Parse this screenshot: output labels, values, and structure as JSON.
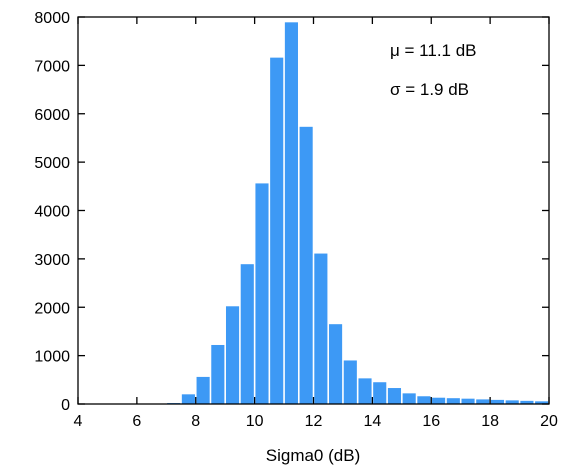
{
  "chart_data": {
    "type": "bar",
    "title": "",
    "xlabel": "Sigma0 (dB)",
    "ylabel": "",
    "xlim": [
      4,
      20
    ],
    "ylim": [
      0,
      8000
    ],
    "xticks": [
      4,
      6,
      8,
      10,
      12,
      14,
      16,
      18,
      20
    ],
    "yticks": [
      0,
      1000,
      2000,
      3000,
      4000,
      5000,
      6000,
      7000,
      8000
    ],
    "bin_width": 0.5,
    "bin_starts": [
      4.0,
      4.5,
      5.0,
      5.5,
      6.0,
      6.5,
      7.0,
      7.5,
      8.0,
      8.5,
      9.0,
      9.5,
      10.0,
      10.5,
      11.0,
      11.5,
      12.0,
      12.5,
      13.0,
      13.5,
      14.0,
      14.5,
      15.0,
      15.5,
      16.0,
      16.5,
      17.0,
      17.5,
      18.0,
      18.5,
      19.0,
      19.5
    ],
    "values": [
      0,
      0,
      0,
      0,
      0,
      0,
      20,
      200,
      560,
      1220,
      2020,
      2890,
      4560,
      7160,
      7890,
      5730,
      3110,
      1650,
      900,
      530,
      450,
      330,
      220,
      160,
      130,
      120,
      110,
      95,
      85,
      75,
      65,
      55
    ],
    "bar_color": "#3d99f5",
    "grid": false,
    "annotations": [
      "μ = 11.1 dB",
      "σ = 1.9 dB"
    ]
  }
}
